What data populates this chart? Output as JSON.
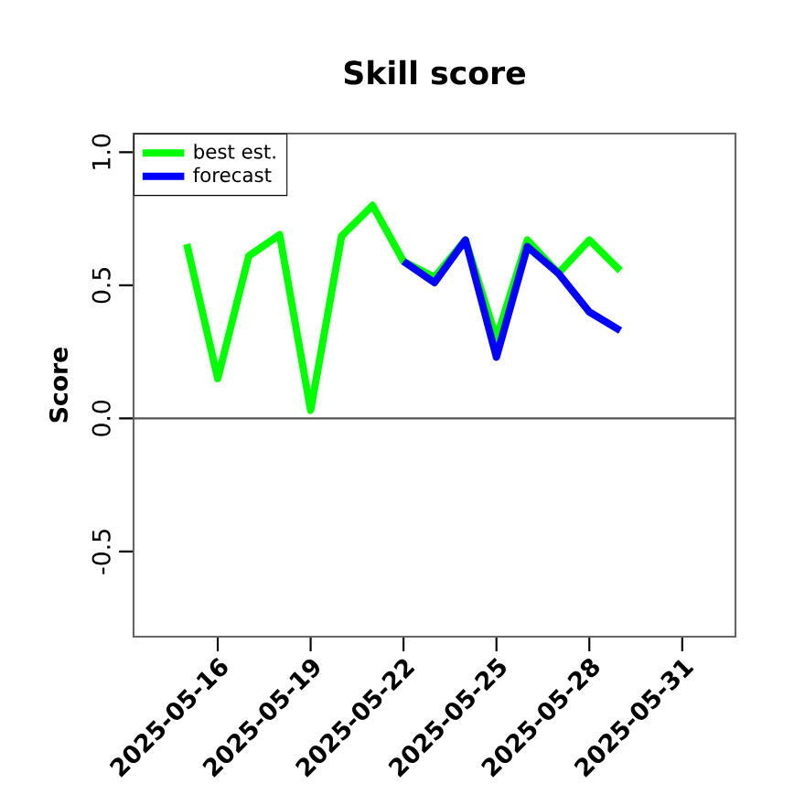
{
  "chart_data": {
    "type": "line",
    "title": "Skill score",
    "ylabel": "Score",
    "x": [
      "2025-05-15",
      "2025-05-16",
      "2025-05-17",
      "2025-05-18",
      "2025-05-19",
      "2025-05-20",
      "2025-05-21",
      "2025-05-22",
      "2025-05-23",
      "2025-05-24",
      "2025-05-25",
      "2025-05-26",
      "2025-05-27",
      "2025-05-28",
      "2025-05-29"
    ],
    "series": [
      {
        "name": "best est.",
        "color": "#00ff00",
        "values": [
          0.655,
          0.15,
          0.61,
          0.69,
          0.03,
          0.685,
          0.8,
          0.59,
          0.53,
          0.67,
          0.3,
          0.67,
          0.545,
          0.67,
          0.555
        ]
      },
      {
        "name": "forecast",
        "color": "#0000ff",
        "values": [
          null,
          null,
          null,
          null,
          null,
          null,
          null,
          0.59,
          0.51,
          0.67,
          0.23,
          0.645,
          0.545,
          0.4,
          0.33
        ]
      }
    ],
    "xlim": [
      "2025-05-13T06:43",
      "2025-06-01T17:17"
    ],
    "xticks": [
      "2025-05-16",
      "2025-05-19",
      "2025-05-22",
      "2025-05-25",
      "2025-05-28",
      "2025-05-31"
    ],
    "ylim": [
      -0.82,
      1.07
    ],
    "yticks": [
      -0.5,
      {
        "value": 0,
        "label": "0.0"
      },
      0.5,
      {
        "value": 1,
        "label": "1.0"
      }
    ],
    "ref_lines": [
      {
        "axis": "y",
        "value": 0,
        "color": "#555555"
      }
    ],
    "legend": "top left",
    "grid": false,
    "marker": "none",
    "line_style": "solid"
  }
}
